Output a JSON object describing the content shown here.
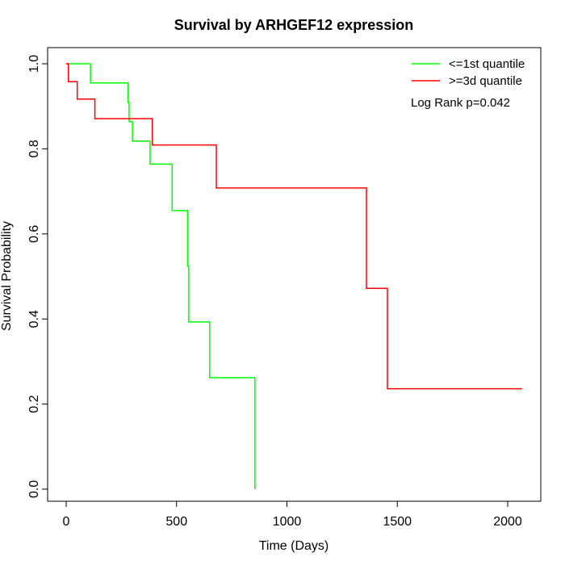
{
  "chart_data": {
    "type": "line",
    "title": "Survival by ARHGEF12 expression",
    "xlabel": "Time (Days)",
    "ylabel": "Survival Probability",
    "xlim": [
      0,
      2070
    ],
    "ylim": [
      0,
      1
    ],
    "x_ticks": [
      0,
      500,
      1000,
      1500,
      2000
    ],
    "y_ticks": [
      0.0,
      0.2,
      0.4,
      0.6,
      0.8,
      1.0
    ],
    "x_tick_labels": [
      "0",
      "500",
      "1000",
      "1500",
      "2000"
    ],
    "y_tick_labels": [
      "0.0",
      "0.2",
      "0.4",
      "0.6",
      "0.8",
      "1.0"
    ],
    "grid": false,
    "legend_position": "top-right",
    "annotation": "Log Rank p=0.042",
    "series": [
      {
        "name": "<=1st quantile",
        "color": "#00ff00",
        "step_x": [
          0,
          110,
          280,
          285,
          300,
          380,
          480,
          550,
          555,
          650,
          855,
          855
        ],
        "step_y": [
          1.0,
          0.955,
          0.909,
          0.864,
          0.818,
          0.764,
          0.655,
          0.524,
          0.393,
          0.262,
          0.262,
          0.0
        ]
      },
      {
        "name": ">=3d quantile",
        "color": "#ff0000",
        "step_x": [
          0,
          10,
          50,
          130,
          390,
          680,
          1360,
          1455,
          2065
        ],
        "step_y": [
          1.0,
          0.958,
          0.917,
          0.871,
          0.809,
          0.708,
          0.472,
          0.236,
          0.236
        ]
      }
    ]
  }
}
